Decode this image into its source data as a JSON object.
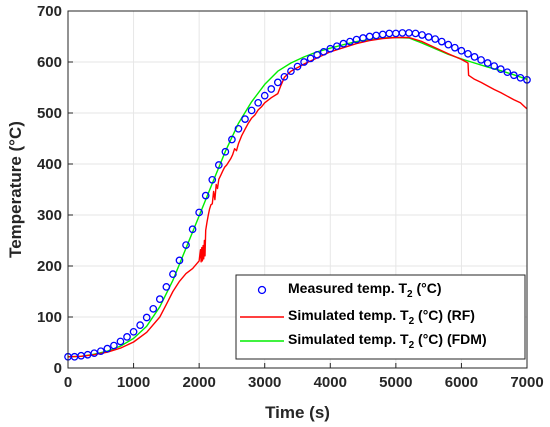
{
  "chart_data": {
    "type": "line",
    "xlabel": "Time (s)",
    "ylabel": "Temperature (°C)",
    "xlim": [
      0,
      7000
    ],
    "ylim": [
      0,
      700
    ],
    "xticks": [
      0,
      1000,
      2000,
      3000,
      4000,
      5000,
      6000,
      7000
    ],
    "yticks": [
      0,
      100,
      200,
      300,
      400,
      500,
      600,
      700
    ],
    "xtick_labels": [
      "0",
      "1000",
      "2000",
      "3000",
      "4000",
      "5000",
      "6000",
      "7000"
    ],
    "ytick_labels": [
      "0",
      "100",
      "200",
      "300",
      "400",
      "500",
      "600",
      "700"
    ],
    "grid": true,
    "legend_position": "bottom-right",
    "series": [
      {
        "name": "Measured temp. T2 (°C)",
        "legend": {
          "prefix": "Measured temp. T",
          "sub": "2",
          "suffix": " (°C)"
        },
        "style": "markers",
        "color": "#0000ff",
        "x": [
          0,
          100,
          200,
          300,
          400,
          500,
          600,
          700,
          800,
          900,
          1000,
          1100,
          1200,
          1300,
          1400,
          1500,
          1600,
          1700,
          1800,
          1900,
          2000,
          2100,
          2200,
          2300,
          2400,
          2500,
          2600,
          2700,
          2800,
          2900,
          3000,
          3100,
          3200,
          3300,
          3400,
          3500,
          3600,
          3700,
          3800,
          3900,
          4000,
          4100,
          4200,
          4300,
          4400,
          4500,
          4600,
          4700,
          4800,
          4900,
          5000,
          5100,
          5200,
          5300,
          5400,
          5500,
          5600,
          5700,
          5800,
          5900,
          6000,
          6100,
          6200,
          6300,
          6400,
          6500,
          6600,
          6700,
          6800,
          6900,
          7000
        ],
        "y": [
          22,
          22,
          24,
          26,
          29,
          33,
          38,
          44,
          52,
          61,
          71,
          84,
          99,
          116,
          135,
          159,
          184,
          211,
          241,
          272,
          305,
          338,
          369,
          398,
          424,
          448,
          469,
          488,
          505,
          520,
          534,
          547,
          560,
          571,
          582,
          591,
          600,
          607,
          614,
          620,
          626,
          631,
          636,
          640,
          644,
          647,
          650,
          652,
          654,
          656,
          656,
          657,
          657,
          656,
          653,
          649,
          645,
          640,
          634,
          628,
          622,
          616,
          610,
          604,
          598,
          592,
          586,
          580,
          574,
          569,
          565
        ]
      },
      {
        "name": "Simulated temp. T2 (°C) (RF)",
        "legend": {
          "prefix": "Simulated temp. T",
          "sub": "2",
          "suffix": " (°C) (RF)"
        },
        "style": "line",
        "color": "#ff0000",
        "x": [
          0,
          200,
          400,
          600,
          800,
          1000,
          1200,
          1400,
          1500,
          1600,
          1700,
          1800,
          1900,
          2000,
          2020,
          2030,
          2040,
          2050,
          2060,
          2070,
          2080,
          2090,
          2100,
          2120,
          2140,
          2160,
          2180,
          2200,
          2220,
          2240,
          2260,
          2280,
          2300,
          2330,
          2360,
          2390,
          2420,
          2450,
          2480,
          2510,
          2540,
          2570,
          2600,
          2650,
          2700,
          2750,
          2800,
          2850,
          2900,
          2950,
          3000,
          3100,
          3200,
          3240,
          3300,
          3400,
          3600,
          3800,
          4000,
          4200,
          4400,
          4600,
          4800,
          5000,
          5200,
          5400,
          5600,
          5800,
          6000,
          6100,
          6110,
          6200,
          6300,
          6400,
          6500,
          6600,
          6700,
          6800,
          6900,
          6950,
          7000
        ],
        "y": [
          22,
          23,
          26,
          31,
          39,
          51,
          70,
          100,
          125,
          150,
          170,
          185,
          195,
          210,
          232,
          208,
          236,
          210,
          240,
          214,
          250,
          220,
          270,
          286,
          300,
          312,
          320,
          322,
          346,
          330,
          360,
          352,
          370,
          378,
          386,
          394,
          398,
          404,
          410,
          418,
          430,
          426,
          440,
          456,
          468,
          480,
          490,
          496,
          506,
          512,
          520,
          530,
          538,
          552,
          570,
          582,
          596,
          608,
          620,
          628,
          636,
          642,
          646,
          648,
          648,
          640,
          628,
          616,
          605,
          598,
          574,
          566,
          560,
          553,
          546,
          540,
          533,
          526,
          520,
          514,
          508
        ]
      },
      {
        "name": "Simulated temp. T2 (°C) (FDM)",
        "legend": {
          "prefix": "Simulated temp. T",
          "sub": "2",
          "suffix": " (°C) (FDM)"
        },
        "style": "line",
        "color": "#00ee00",
        "x": [
          0,
          200,
          400,
          600,
          800,
          1000,
          1200,
          1400,
          1600,
          1800,
          2000,
          2200,
          2400,
          2600,
          2800,
          3000,
          3200,
          3400,
          3600,
          3800,
          4000,
          4200,
          4400,
          4600,
          4800,
          5000,
          5200,
          5400,
          5600,
          5800,
          6000,
          6200,
          6400,
          6600,
          6800,
          7000
        ],
        "y": [
          22,
          23,
          27,
          33,
          43,
          58,
          82,
          120,
          172,
          235,
          298,
          362,
          425,
          480,
          522,
          556,
          582,
          598,
          610,
          620,
          627,
          634,
          640,
          644,
          647,
          648,
          647,
          637,
          626,
          615,
          606,
          598,
          590,
          583,
          575,
          566
        ]
      }
    ]
  }
}
